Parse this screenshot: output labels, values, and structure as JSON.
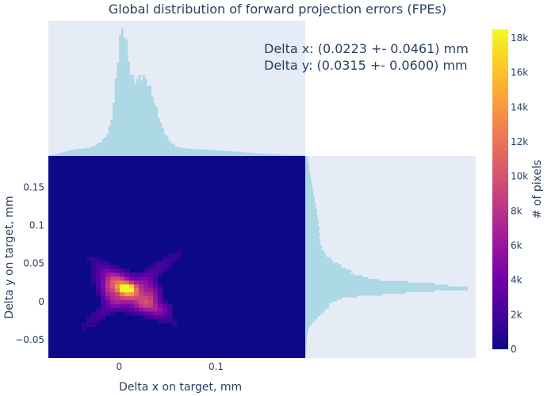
{
  "chart_data": {
    "type": "heatmap",
    "title": "Global distribution of forward projection errors (FPEs)",
    "xlabel": "Delta x on target, mm",
    "ylabel": "Delta y on target, mm",
    "colorbar_label": "# of pixels",
    "annotations": [
      "Delta x: (0.0223 +- 0.0461) mm",
      "Delta y: (0.0315 +- 0.0600) mm"
    ],
    "x_range": [
      -0.073,
      0.192
    ],
    "y_range": [
      -0.074,
      0.191
    ],
    "x_ticks": [
      0,
      0.1
    ],
    "x_tick_labels": [
      "0",
      "0.1"
    ],
    "y_ticks": [
      -0.05,
      0,
      0.05,
      0.1,
      0.15
    ],
    "y_tick_labels": [
      "−0.05",
      "0",
      "0.05",
      "0.1",
      "0.15"
    ],
    "colorbar": {
      "min": 0,
      "max": 18500,
      "ticks": [
        0,
        2000,
        4000,
        6000,
        8000,
        10000,
        12000,
        14000,
        16000,
        18000
      ],
      "tick_labels": [
        "0",
        "2k",
        "4k",
        "6k",
        "8k",
        "10k",
        "12k",
        "14k",
        "16k",
        "18k"
      ],
      "colorscale": [
        "#0d0887",
        "#46039f",
        "#7201a8",
        "#9c179e",
        "#bd3786",
        "#d8576b",
        "#ed7953",
        "#fb9f3a",
        "#fdca26",
        "#f0f921"
      ]
    },
    "heatmap_peak": {
      "x": 0.0065,
      "y": 0.018,
      "value": 18300
    },
    "x_marginal": {
      "peak_x": 0.003,
      "secondary_peak_x": 0.025,
      "shape": "asymmetric peak with long right tail"
    },
    "y_marginal": {
      "peak_y": 0.018,
      "shape": "asymmetric peak with long upper tail"
    },
    "colors": {
      "plot_bg": "#e5ecf6",
      "marginal_fill": "#add8e6",
      "text": "#2a3f5f"
    },
    "grid": false,
    "legend": "none"
  }
}
